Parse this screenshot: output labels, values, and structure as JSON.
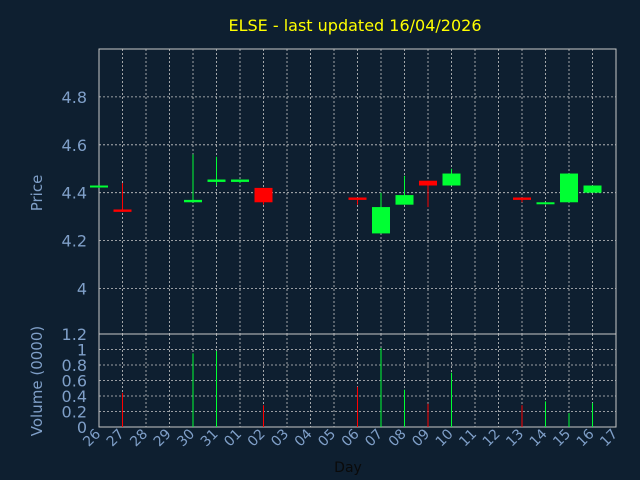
{
  "chart_data": [
    {
      "type": "candlestick",
      "title": "ELSE - last updated 16/04/2026",
      "ylabel": "Price",
      "ylim": [
        3.81,
        5.0
      ],
      "yticks": [
        {
          "value": 4,
          "label": "4"
        },
        {
          "value": 4.2,
          "label": "4.2"
        },
        {
          "value": 4.4,
          "label": "4.4"
        },
        {
          "value": 4.6,
          "label": "4.6"
        },
        {
          "value": 4.8,
          "label": "4.8"
        }
      ],
      "grid": true,
      "colors": {
        "up": "#00ff33",
        "down": "#ff0000",
        "title": "#ffff00",
        "grid": "#c8c8c8",
        "axis_text": "#7f9fc8"
      },
      "candles": [
        {
          "day": "26",
          "open": 4.425,
          "high": 4.43,
          "low": 4.42,
          "close": 4.43
        },
        {
          "day": "27",
          "open": 4.33,
          "high": 4.44,
          "low": 4.32,
          "close": 4.32
        },
        {
          "day": "30",
          "open": 4.36,
          "high": 4.56,
          "low": 4.36,
          "close": 4.37
        },
        {
          "day": "31",
          "open": 4.445,
          "high": 4.55,
          "low": 4.43,
          "close": 4.455
        },
        {
          "day": "01",
          "open": 4.445,
          "high": 4.455,
          "low": 4.44,
          "close": 4.455
        },
        {
          "day": "02",
          "open": 4.42,
          "high": 4.42,
          "low": 4.35,
          "close": 4.36
        },
        {
          "day": "06",
          "open": 4.38,
          "high": 4.38,
          "low": 4.35,
          "close": 4.37
        },
        {
          "day": "07",
          "open": 4.23,
          "high": 4.4,
          "low": 4.23,
          "close": 4.34
        },
        {
          "day": "08",
          "open": 4.35,
          "high": 4.47,
          "low": 4.35,
          "close": 4.39
        },
        {
          "day": "09",
          "open": 4.45,
          "high": 4.45,
          "low": 4.34,
          "close": 4.43
        },
        {
          "day": "10",
          "open": 4.43,
          "high": 4.5,
          "low": 4.43,
          "close": 4.48
        },
        {
          "day": "13",
          "open": 4.38,
          "high": 4.38,
          "low": 4.36,
          "close": 4.37
        },
        {
          "day": "14",
          "open": 4.36,
          "high": 4.36,
          "low": 4.35,
          "close": 4.36
        },
        {
          "day": "15",
          "open": 4.36,
          "high": 4.48,
          "low": 4.36,
          "close": 4.48
        },
        {
          "day": "16",
          "open": 4.4,
          "high": 4.43,
          "low": 4.4,
          "close": 4.43
        }
      ]
    },
    {
      "type": "bar",
      "ylabel": "Volume (0000)",
      "xlabel": "Day",
      "ylim": [
        0,
        1.2
      ],
      "yticks": [
        {
          "value": 0,
          "label": "0"
        },
        {
          "value": 0.2,
          "label": "0.2"
        },
        {
          "value": 0.4,
          "label": "0.4"
        },
        {
          "value": 0.6,
          "label": "0.6"
        },
        {
          "value": 0.8,
          "label": "0.8"
        },
        {
          "value": 1,
          "label": "1"
        },
        {
          "value": 1.2,
          "label": "1.2"
        }
      ],
      "categories": [
        "26",
        "27",
        "28",
        "29",
        "30",
        "31",
        "01",
        "02",
        "03",
        "04",
        "05",
        "06",
        "07",
        "08",
        "09",
        "10",
        "11",
        "12",
        "13",
        "14",
        "15",
        "16",
        "17"
      ],
      "bars": [
        {
          "day": "27",
          "value": 0.44,
          "color": "red"
        },
        {
          "day": "30",
          "value": 0.95,
          "color": "green"
        },
        {
          "day": "31",
          "value": 0.98,
          "color": "green"
        },
        {
          "day": "02",
          "value": 0.28,
          "color": "red"
        },
        {
          "day": "06",
          "value": 0.52,
          "color": "red"
        },
        {
          "day": "07",
          "value": 1.02,
          "color": "green"
        },
        {
          "day": "08",
          "value": 0.48,
          "color": "green"
        },
        {
          "day": "09",
          "value": 0.3,
          "color": "red"
        },
        {
          "day": "10",
          "value": 0.7,
          "color": "green"
        },
        {
          "day": "13",
          "value": 0.28,
          "color": "red"
        },
        {
          "day": "14",
          "value": 0.33,
          "color": "green"
        },
        {
          "day": "15",
          "value": 0.18,
          "color": "green"
        },
        {
          "day": "16",
          "value": 0.31,
          "color": "green"
        }
      ],
      "grid": true
    }
  ]
}
